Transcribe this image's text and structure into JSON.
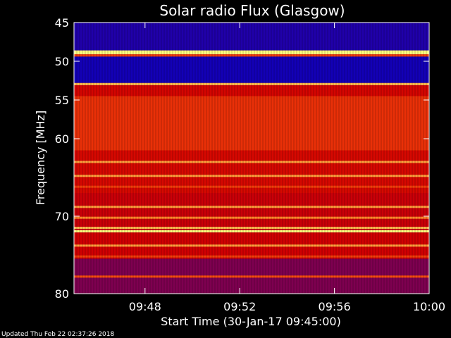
{
  "chart_data": {
    "type": "heatmap",
    "title": "Solar radio Flux (Glasgow)",
    "xlabel": "Start Time (30-Jan-17 09:45:00)",
    "ylabel": "Frequency [MHz]",
    "x_ticks": [
      "09:48",
      "09:52",
      "09:56",
      "10:00"
    ],
    "x_tick_minutes": [
      3,
      7,
      11,
      15
    ],
    "xlim_minutes": [
      0,
      15
    ],
    "y_ticks": [
      45,
      50,
      55,
      60,
      70,
      80
    ],
    "ylim": [
      45,
      80
    ],
    "colormap": [
      "#0000c8",
      "#d20000",
      "#ff6010",
      "#ffff80"
    ],
    "bands": [
      {
        "from": 45.0,
        "to": 48.6,
        "value": 0.05
      },
      {
        "from": 48.6,
        "to": 49.1,
        "value": 1.0
      },
      {
        "from": 49.1,
        "to": 49.4,
        "value": 0.55
      },
      {
        "from": 49.4,
        "to": 52.8,
        "value": 0.03
      },
      {
        "from": 52.8,
        "to": 53.1,
        "value": 0.85
      },
      {
        "from": 53.1,
        "to": 54.5,
        "value": 0.35
      },
      {
        "from": 54.5,
        "to": 61.5,
        "value": 0.5
      },
      {
        "from": 61.5,
        "to": 67.0,
        "value": 0.36
      },
      {
        "from": 67.0,
        "to": 71.8,
        "value": 0.32
      },
      {
        "from": 71.8,
        "to": 72.1,
        "value": 1.0
      },
      {
        "from": 72.1,
        "to": 75.5,
        "value": 0.33
      },
      {
        "from": 75.5,
        "to": 80.0,
        "value": 0.2
      }
    ],
    "lines": [
      {
        "freq": 63.0,
        "value": 0.8
      },
      {
        "freq": 64.8,
        "value": 0.8
      },
      {
        "freq": 66.2,
        "value": 0.55
      },
      {
        "freq": 68.8,
        "value": 0.8
      },
      {
        "freq": 70.2,
        "value": 0.75
      },
      {
        "freq": 71.5,
        "value": 0.85
      },
      {
        "freq": 73.8,
        "value": 0.8
      },
      {
        "freq": 75.2,
        "value": 0.55
      },
      {
        "freq": 77.8,
        "value": 0.6
      }
    ]
  },
  "footer": "Updated Thu Feb 22 02:37:26 2018"
}
